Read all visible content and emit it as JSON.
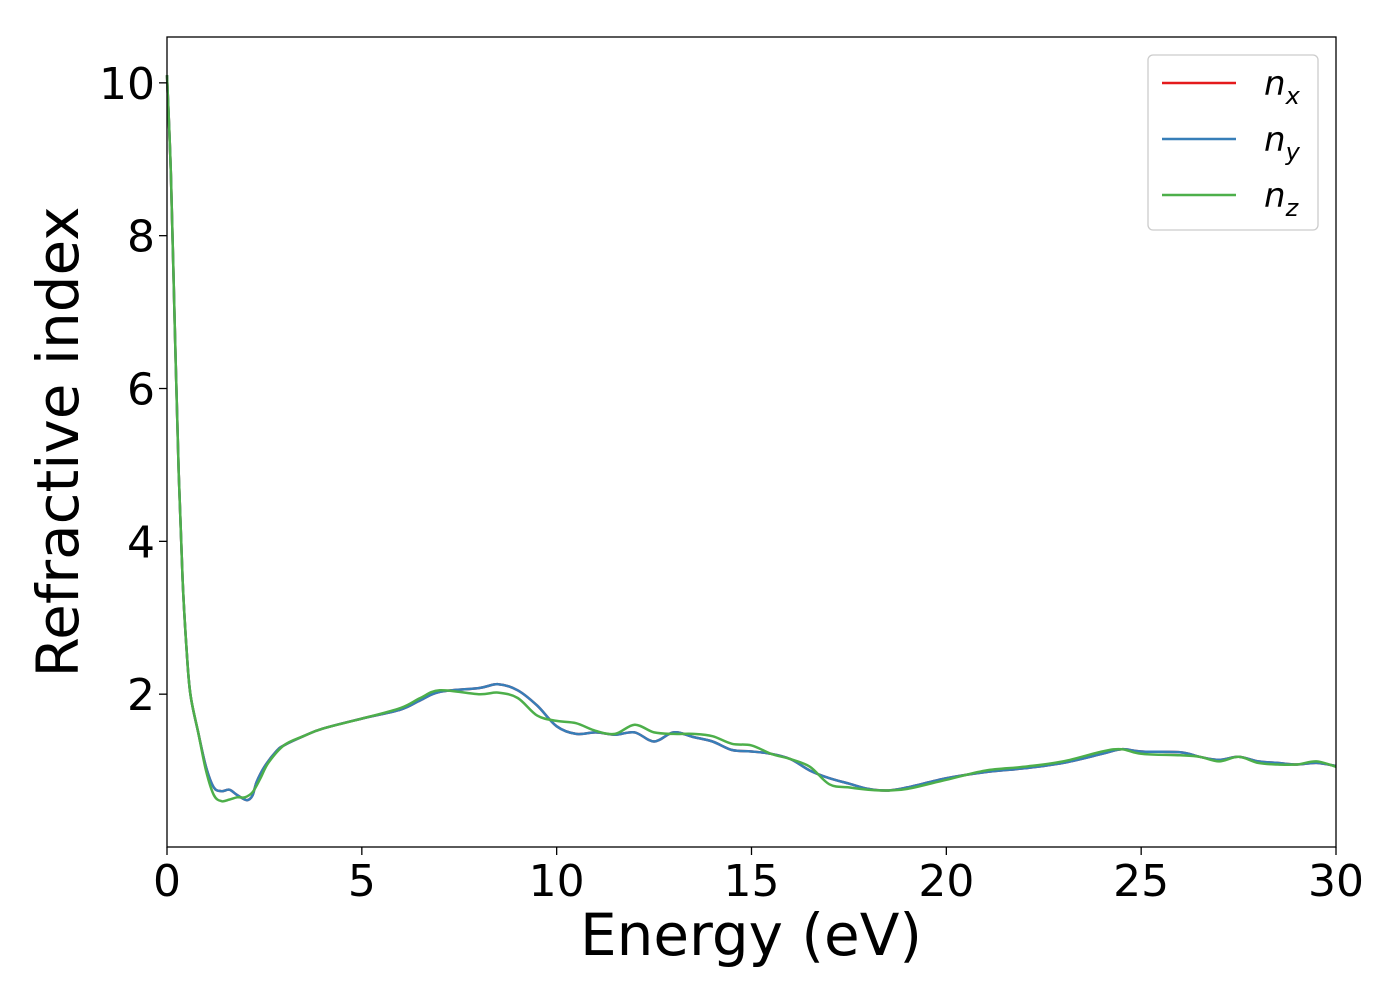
{
  "chart_data": {
    "type": "line",
    "title": "",
    "xlabel": "Energy (eV)",
    "ylabel": "Refractive index",
    "xlim": [
      0,
      30
    ],
    "ylim": [
      0,
      10.6
    ],
    "xticks": [
      0,
      5,
      10,
      15,
      20,
      25,
      30
    ],
    "yticks": [
      2,
      4,
      6,
      8,
      10
    ],
    "grid": false,
    "legend": {
      "placement": "top-right",
      "entries": [
        {
          "base": "n",
          "sub": "x",
          "color": "#e41a1c"
        },
        {
          "base": "n",
          "sub": "y",
          "color": "#377eb8"
        },
        {
          "base": "n",
          "sub": "z",
          "color": "#4daf4a"
        }
      ]
    },
    "series": [
      {
        "legend_index": 0,
        "color": "#e41a1c",
        "x": [
          0.0,
          0.1,
          0.2,
          0.3,
          0.4,
          0.5,
          0.6,
          0.8,
          1.0,
          1.2,
          1.4,
          1.6,
          1.8,
          2.0,
          2.1,
          2.2,
          2.3,
          2.5,
          2.8,
          3.0,
          3.5,
          4.0,
          5.0,
          6.0,
          6.5,
          7.0,
          8.0,
          8.5,
          9.0,
          9.5,
          10.0,
          10.5,
          11.0,
          11.5,
          12.0,
          12.5,
          13.0,
          13.5,
          14.0,
          14.5,
          15.0,
          15.5,
          16.0,
          16.5,
          17.0,
          17.5,
          18.0,
          18.5,
          19.0,
          20.0,
          21.0,
          22.0,
          23.0,
          24.0,
          24.5,
          25.0,
          26.0,
          26.5,
          27.0,
          27.5,
          28.0,
          28.5,
          29.0,
          29.5,
          30.0
        ],
        "y": [
          10.1,
          8.8,
          6.8,
          4.9,
          3.5,
          2.6,
          2.0,
          1.5,
          1.05,
          0.78,
          0.73,
          0.75,
          0.68,
          0.62,
          0.62,
          0.68,
          0.85,
          1.05,
          1.25,
          1.33,
          1.45,
          1.55,
          1.68,
          1.8,
          1.92,
          2.03,
          2.08,
          2.13,
          2.05,
          1.85,
          1.58,
          1.48,
          1.5,
          1.47,
          1.5,
          1.38,
          1.5,
          1.44,
          1.38,
          1.27,
          1.25,
          1.22,
          1.15,
          1.0,
          0.9,
          0.83,
          0.76,
          0.74,
          0.78,
          0.9,
          0.98,
          1.03,
          1.1,
          1.22,
          1.28,
          1.25,
          1.24,
          1.18,
          1.14,
          1.18,
          1.12,
          1.1,
          1.08,
          1.1,
          1.06
        ]
      },
      {
        "legend_index": 1,
        "color": "#377eb8",
        "x": [
          0.0,
          0.1,
          0.2,
          0.3,
          0.4,
          0.5,
          0.6,
          0.8,
          1.0,
          1.2,
          1.4,
          1.6,
          1.8,
          2.0,
          2.1,
          2.2,
          2.3,
          2.5,
          2.8,
          3.0,
          3.5,
          4.0,
          5.0,
          6.0,
          6.5,
          7.0,
          8.0,
          8.5,
          9.0,
          9.5,
          10.0,
          10.5,
          11.0,
          11.5,
          12.0,
          12.5,
          13.0,
          13.5,
          14.0,
          14.5,
          15.0,
          15.5,
          16.0,
          16.5,
          17.0,
          17.5,
          18.0,
          18.5,
          19.0,
          20.0,
          21.0,
          22.0,
          23.0,
          24.0,
          24.5,
          25.0,
          26.0,
          26.5,
          27.0,
          27.5,
          28.0,
          28.5,
          29.0,
          29.5,
          30.0
        ],
        "y": [
          10.1,
          8.8,
          6.8,
          4.9,
          3.5,
          2.6,
          2.0,
          1.5,
          1.05,
          0.78,
          0.73,
          0.75,
          0.68,
          0.62,
          0.62,
          0.68,
          0.85,
          1.05,
          1.25,
          1.33,
          1.45,
          1.55,
          1.68,
          1.8,
          1.92,
          2.03,
          2.08,
          2.13,
          2.05,
          1.85,
          1.58,
          1.48,
          1.5,
          1.47,
          1.5,
          1.38,
          1.5,
          1.44,
          1.38,
          1.27,
          1.25,
          1.22,
          1.15,
          1.0,
          0.9,
          0.83,
          0.76,
          0.74,
          0.78,
          0.9,
          0.98,
          1.03,
          1.1,
          1.22,
          1.28,
          1.25,
          1.24,
          1.18,
          1.14,
          1.18,
          1.12,
          1.1,
          1.08,
          1.1,
          1.06
        ]
      },
      {
        "legend_index": 2,
        "color": "#4daf4a",
        "x": [
          0.0,
          0.1,
          0.2,
          0.3,
          0.4,
          0.5,
          0.6,
          0.8,
          1.0,
          1.2,
          1.4,
          1.6,
          1.8,
          2.0,
          2.2,
          2.4,
          2.6,
          3.0,
          3.5,
          4.0,
          5.0,
          6.0,
          6.5,
          7.0,
          8.0,
          8.5,
          9.0,
          9.5,
          10.0,
          10.5,
          11.0,
          11.5,
          12.0,
          12.5,
          13.0,
          13.5,
          14.0,
          14.5,
          15.0,
          15.5,
          16.0,
          16.5,
          17.0,
          17.5,
          18.0,
          18.5,
          19.0,
          20.0,
          21.0,
          22.0,
          23.0,
          24.0,
          24.5,
          25.0,
          26.0,
          26.5,
          27.0,
          27.5,
          28.0,
          28.5,
          29.0,
          29.5,
          30.0
        ],
        "y": [
          10.1,
          8.8,
          6.8,
          4.9,
          3.5,
          2.6,
          2.0,
          1.5,
          1.0,
          0.68,
          0.6,
          0.62,
          0.65,
          0.65,
          0.72,
          0.9,
          1.1,
          1.33,
          1.45,
          1.55,
          1.68,
          1.82,
          1.95,
          2.05,
          2.0,
          2.02,
          1.95,
          1.72,
          1.65,
          1.62,
          1.52,
          1.48,
          1.6,
          1.5,
          1.48,
          1.48,
          1.45,
          1.35,
          1.33,
          1.22,
          1.15,
          1.05,
          0.82,
          0.78,
          0.75,
          0.74,
          0.76,
          0.88,
          1.0,
          1.05,
          1.12,
          1.25,
          1.28,
          1.22,
          1.2,
          1.18,
          1.12,
          1.18,
          1.1,
          1.08,
          1.08,
          1.12,
          1.05
        ]
      }
    ]
  }
}
